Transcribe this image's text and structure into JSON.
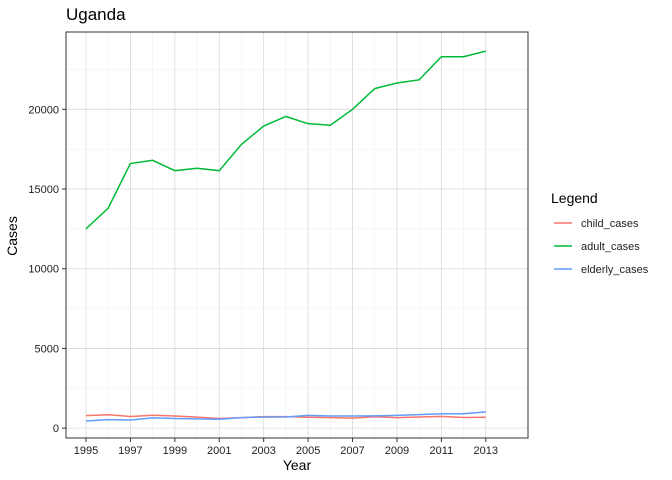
{
  "chart_data": {
    "type": "line",
    "title": "Uganda",
    "xlabel": "Year",
    "ylabel": "Cases",
    "x": [
      1995,
      1996,
      1997,
      1998,
      1999,
      2000,
      2001,
      2002,
      2003,
      2004,
      2005,
      2006,
      2007,
      2008,
      2009,
      2010,
      2011,
      2012,
      2013
    ],
    "xlim": [
      1994.1,
      2014.9
    ],
    "ylim": [
      -620,
      24850
    ],
    "xticks": [
      1995,
      1997,
      1999,
      2001,
      2003,
      2005,
      2007,
      2009,
      2011,
      2013
    ],
    "yticks": [
      0,
      5000,
      10000,
      15000,
      20000
    ],
    "grid": true,
    "legend": {
      "title": "Legend",
      "position": "right"
    },
    "series": [
      {
        "name": "child_cases",
        "color": "#F8766D",
        "values": [
          780,
          840,
          730,
          810,
          760,
          690,
          600,
          660,
          720,
          720,
          680,
          660,
          630,
          710,
          660,
          700,
          740,
          670,
          680
        ]
      },
      {
        "name": "adult_cases",
        "color": "#00BA38",
        "values": [
          12500,
          13800,
          16600,
          16800,
          16150,
          16300,
          16150,
          17800,
          18950,
          19550,
          19100,
          19000,
          20000,
          21300,
          21650,
          21850,
          23300,
          23300,
          23650
        ]
      },
      {
        "name": "elderly_cases",
        "color": "#619CFF",
        "values": [
          450,
          530,
          510,
          640,
          600,
          580,
          560,
          660,
          690,
          700,
          800,
          760,
          760,
          770,
          800,
          850,
          900,
          900,
          1020
        ]
      }
    ]
  }
}
